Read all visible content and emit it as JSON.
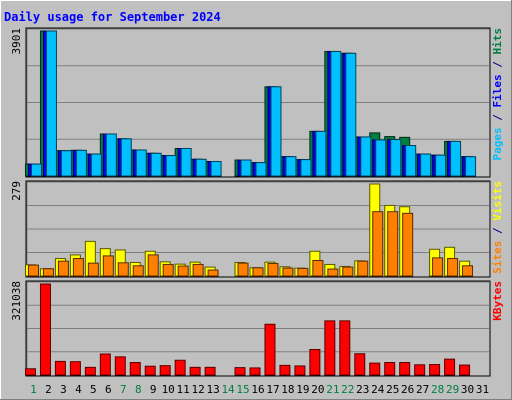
{
  "chart_data": {
    "type": "bar",
    "title": "Daily usage for September 2024",
    "categories": [
      "1",
      "2",
      "3",
      "4",
      "5",
      "6",
      "7",
      "8",
      "9",
      "10",
      "11",
      "12",
      "13",
      "14",
      "15",
      "16",
      "17",
      "18",
      "19",
      "20",
      "21",
      "22",
      "23",
      "24",
      "25",
      "26",
      "27",
      "28",
      "29",
      "30",
      "31"
    ],
    "weekend_days": [
      "1",
      "7",
      "8",
      "14",
      "15",
      "21",
      "22",
      "28",
      "29"
    ],
    "panels": [
      {
        "id": "hits-files-pages",
        "max_label": "3901",
        "ymax": 3901,
        "ylabel_parts": [
          {
            "text": "Pages",
            "color": "#00c0ff"
          },
          {
            "text": " / ",
            "color": "#000080"
          },
          {
            "text": "Files",
            "color": "#0000ff"
          },
          {
            "text": " / ",
            "color": "#000080"
          },
          {
            "text": "Hits",
            "color": "#008040"
          }
        ],
        "series": [
          {
            "name": "Hits",
            "color": "#008040",
            "values": [
              320,
              3901,
              680,
              690,
              590,
              1130,
              1000,
              700,
              610,
              550,
              740,
              450,
              390,
              null,
              430,
              360,
              2400,
              520,
              440,
              1200,
              3350,
              3300,
              1050,
              1160,
              1060,
              1040,
              590,
              560,
              930,
              520,
              null
            ]
          },
          {
            "name": "Files",
            "color": "#0000ff",
            "values": [
              320,
              3901,
              680,
              690,
              590,
              1130,
              1000,
              700,
              610,
              550,
              740,
              450,
              390,
              null,
              430,
              360,
              2400,
              520,
              440,
              1200,
              3350,
              3300,
              1050,
              970,
              980,
              820,
              590,
              560,
              930,
              520,
              null
            ]
          },
          {
            "name": "Pages",
            "color": "#00c0ff",
            "values": [
              320,
              3901,
              680,
              690,
              590,
              1130,
              1000,
              700,
              610,
              550,
              740,
              450,
              390,
              null,
              430,
              360,
              2400,
              520,
              440,
              1200,
              3350,
              3300,
              1050,
              970,
              980,
              820,
              590,
              560,
              930,
              520,
              null
            ]
          }
        ]
      },
      {
        "id": "visits-sites",
        "max_label": "279",
        "ymax": 279,
        "ylabel_parts": [
          {
            "text": "Sites",
            "color": "#ff8000"
          },
          {
            "text": " / ",
            "color": "#000080"
          },
          {
            "text": "Visits",
            "color": "#ffff00"
          }
        ],
        "series": [
          {
            "name": "Visits",
            "color": "#ffff00",
            "values": [
              34,
              22,
              53,
              64,
              105,
              83,
              79,
              41,
              75,
              43,
              36,
              42,
              27,
              null,
              41,
              25,
              42,
              28,
              24,
              75,
              35,
              29,
              46,
              279,
              214,
              210,
              null,
              81,
              87,
              45,
              null
            ]
          },
          {
            "name": "Sites",
            "color": "#ff8000",
            "values": [
              33,
              22,
              45,
              53,
              39,
              61,
              40,
              31,
              64,
              35,
              30,
              35,
              18,
              null,
              39,
              25,
              38,
              24,
              23,
              47,
              21,
              27,
              45,
              195,
              195,
              190,
              null,
              55,
              53,
              31,
              null
            ]
          }
        ]
      },
      {
        "id": "kbytes",
        "max_label": "321038",
        "ymax": 321038,
        "ylabel_parts": [
          {
            "text": "KBytes",
            "color": "#ff0000"
          }
        ],
        "series": [
          {
            "name": "KBytes",
            "color": "#ff0000",
            "values": [
              22000,
              321038,
              48000,
              47000,
              27000,
              74000,
              64000,
              44000,
              31000,
              33000,
              52000,
              27000,
              27000,
              null,
              26000,
              25000,
              179000,
              34000,
              32000,
              90000,
              191000,
              191000,
              75000,
              42000,
              44000,
              44000,
              36000,
              37000,
              56000,
              35000,
              null
            ]
          }
        ]
      }
    ],
    "legend": "right-side vertical labels per panel",
    "grid": true
  }
}
